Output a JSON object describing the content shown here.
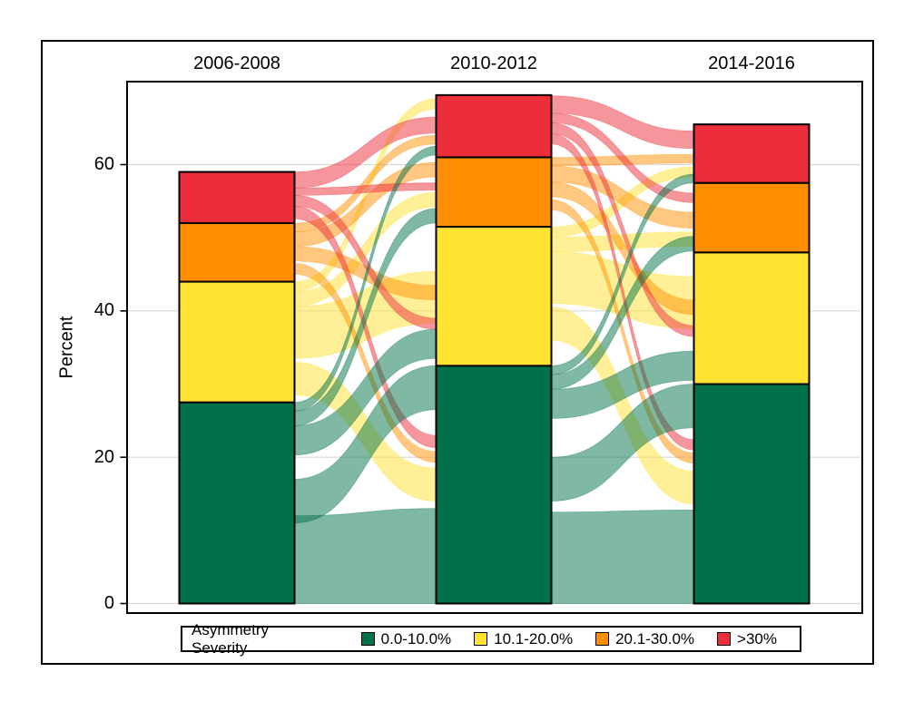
{
  "y_axis": {
    "label": "Percent",
    "ticks": [
      0,
      20,
      40,
      60
    ],
    "tick_labels": [
      "0",
      "20",
      "40",
      "60"
    ]
  },
  "x_axis": {
    "labels": [
      "2006-2008",
      "2010-2012",
      "2014-2016"
    ]
  },
  "legend": {
    "title": "Asymmetry Severity",
    "items": [
      {
        "label": "0.0-10.0%",
        "color": "#007148"
      },
      {
        "label": "10.1-20.0%",
        "color": "#FFE232"
      },
      {
        "label": "20.1-30.0%",
        "color": "#FF8F00"
      },
      {
        "label": ">30%",
        "color": "#EC2D3A"
      }
    ]
  },
  "chart_data": {
    "type": "alluvial",
    "subtype": "stacked-bar-with-flows",
    "unit": "percent",
    "ylabel": "Percent",
    "ylim": [
      0,
      71
    ],
    "grid": true,
    "legend_position": "bottom",
    "periods": [
      "2006-2008",
      "2010-2012",
      "2014-2016"
    ],
    "categories": [
      {
        "name": "0.0-10.0%",
        "color": "#007148"
      },
      {
        "name": "10.1-20.0%",
        "color": "#FFE232"
      },
      {
        "name": "20.1-30.0%",
        "color": "#FF8F00"
      },
      {
        "name": ">30%",
        "color": "#EC2D3A"
      }
    ],
    "bars": [
      {
        "period": "2006-2008",
        "values": [
          27.5,
          16.5,
          8.0,
          7.0
        ],
        "total": 59.0
      },
      {
        "period": "2010-2012",
        "values": [
          32.5,
          19.0,
          9.5,
          8.5
        ],
        "total": 69.5
      },
      {
        "period": "2014-2016",
        "values": [
          30.0,
          18.0,
          9.5,
          8.0
        ],
        "total": 65.5
      }
    ],
    "flows": [
      {
        "from_period": "2006-2008",
        "to_period": "2010-2012",
        "transitions": [
          {
            "from": "10.1-20.0%",
            "to": ">30%",
            "src": [
              42.6,
              44.0
            ],
            "dst": [
              67.6,
              69.0
            ]
          },
          {
            "from": "10.1-20.0%",
            "to": "20.1-30.0%",
            "src": [
              40.6,
              42.6
            ],
            "dst": [
              54.2,
              56.2
            ]
          },
          {
            "from": "10.1-20.0%",
            "to": "10.1-20.0%",
            "src": [
              33.5,
              40.6
            ],
            "dst": [
              38.3,
              45.4
            ]
          },
          {
            "from": "10.1-20.0%",
            "to": "0.0-10.0%",
            "src": [
              28.5,
              33.0
            ],
            "dst": [
              14.0,
              18.5
            ]
          },
          {
            "from": "20.1-30.0%",
            "to": ">30%",
            "src": [
              50.8,
              52.0
            ],
            "dst": [
              62.8,
              64.0
            ]
          },
          {
            "from": "20.1-30.0%",
            "to": "20.1-30.0%",
            "src": [
              48.8,
              50.8
            ],
            "dst": [
              58.3,
              60.3
            ]
          },
          {
            "from": "20.1-30.0%",
            "to": "10.1-20.0%",
            "src": [
              46.8,
              48.8
            ],
            "dst": [
              41.5,
              43.5
            ]
          },
          {
            "from": "20.1-30.0%",
            "to": "0.0-10.0%",
            "src": [
              45.0,
              46.5
            ],
            "dst": [
              19.3,
              20.8
            ]
          },
          {
            "from": ">30%",
            "to": ">30%",
            "src": [
              56.8,
              59.0
            ],
            "dst": [
              64.3,
              66.5
            ]
          },
          {
            "from": ">30%",
            "to": "20.1-30.0%",
            "src": [
              55.8,
              56.8
            ],
            "dst": [
              56.5,
              57.5
            ]
          },
          {
            "from": ">30%",
            "to": "10.1-20.0%",
            "src": [
              54.3,
              55.8
            ],
            "dst": [
              37.5,
              39.0
            ]
          },
          {
            "from": ">30%",
            "to": "0.0-10.0%",
            "src": [
              52.6,
              54.3
            ],
            "dst": [
              21.3,
              23.0
            ]
          },
          {
            "from": "0.0-10.0%",
            "to": ">30%",
            "src": [
              26.3,
              27.5
            ],
            "dst": [
              61.3,
              62.5
            ]
          },
          {
            "from": "0.0-10.0%",
            "to": "20.1-30.0%",
            "src": [
              24.3,
              26.3
            ],
            "dst": [
              52.0,
              54.0
            ]
          },
          {
            "from": "0.0-10.0%",
            "to": "10.1-20.0%",
            "src": [
              20.3,
              24.3
            ],
            "dst": [
              33.5,
              37.5
            ]
          },
          {
            "from": "0.0-10.0%",
            "to": "0.0-10.0%",
            "src": [
              11.0,
              17.0
            ],
            "dst": [
              26.5,
              32.5
            ]
          },
          {
            "from": "0.0-10.0%",
            "to": "0.0-10.0%",
            "src": [
              0.0,
              12.0
            ],
            "dst": [
              0.0,
              13.0
            ]
          }
        ]
      },
      {
        "from_period": "2010-2012",
        "to_period": "2014-2016",
        "transitions": [
          {
            "from": "10.1-20.0%",
            "to": ">30%",
            "src": [
              50.1,
              51.5
            ],
            "dst": [
              58.3,
              59.7
            ]
          },
          {
            "from": "10.1-20.0%",
            "to": "20.1-30.0%",
            "src": [
              48.1,
              50.1
            ],
            "dst": [
              48.8,
              50.8
            ]
          },
          {
            "from": "10.1-20.0%",
            "to": "10.1-20.0%",
            "src": [
              41.0,
              48.1
            ],
            "dst": [
              37.6,
              44.7
            ]
          },
          {
            "from": "10.1-20.0%",
            "to": "0.0-10.0%",
            "src": [
              36.0,
              40.5
            ],
            "dst": [
              13.6,
              18.1
            ]
          },
          {
            "from": "20.1-30.0%",
            "to": ">30%",
            "src": [
              59.8,
              61.0
            ],
            "dst": [
              60.2,
              61.4
            ]
          },
          {
            "from": "20.1-30.0%",
            "to": "20.1-30.0%",
            "src": [
              57.6,
              59.8
            ],
            "dst": [
              51.3,
              53.5
            ]
          },
          {
            "from": "20.1-30.0%",
            "to": "10.1-20.0%",
            "src": [
              55.6,
              57.6
            ],
            "dst": [
              39.5,
              41.5
            ]
          },
          {
            "from": "20.1-30.0%",
            "to": "0.0-10.0%",
            "src": [
              53.8,
              55.2
            ],
            "dst": [
              19.2,
              20.6
            ]
          },
          {
            "from": ">30%",
            "to": ">30%",
            "src": [
              67.0,
              69.4
            ],
            "dst": [
              62.2,
              64.6
            ]
          },
          {
            "from": ">30%",
            "to": "20.1-30.0%",
            "src": [
              65.7,
              67.0
            ],
            "dst": [
              54.8,
              56.1
            ]
          },
          {
            "from": ">30%",
            "to": "10.1-20.0%",
            "src": [
              64.2,
              65.7
            ],
            "dst": [
              36.5,
              38.0
            ]
          },
          {
            "from": ">30%",
            "to": "0.0-10.0%",
            "src": [
              62.8,
              64.2
            ],
            "dst": [
              21.0,
              22.4
            ]
          },
          {
            "from": "0.0-10.0%",
            "to": ">30%",
            "src": [
              31.3,
              32.5
            ],
            "dst": [
              57.5,
              58.7
            ]
          },
          {
            "from": "0.0-10.0%",
            "to": "20.1-30.0%",
            "src": [
              29.3,
              31.3
            ],
            "dst": [
              48.2,
              50.2
            ]
          },
          {
            "from": "0.0-10.0%",
            "to": "10.1-20.0%",
            "src": [
              25.3,
              29.3
            ],
            "dst": [
              30.5,
              34.5
            ]
          },
          {
            "from": "0.0-10.0%",
            "to": "0.0-10.0%",
            "src": [
              14.0,
              20.0
            ],
            "dst": [
              24.0,
              30.0
            ]
          },
          {
            "from": "0.0-10.0%",
            "to": "0.0-10.0%",
            "src": [
              0.0,
              12.5
            ],
            "dst": [
              0.0,
              12.8
            ]
          }
        ]
      }
    ]
  },
  "style": {
    "gridline_color": "#D9D9D9",
    "axis_color": "#000000",
    "flow_opacity": 0.5,
    "background": "#FFFFFF"
  }
}
